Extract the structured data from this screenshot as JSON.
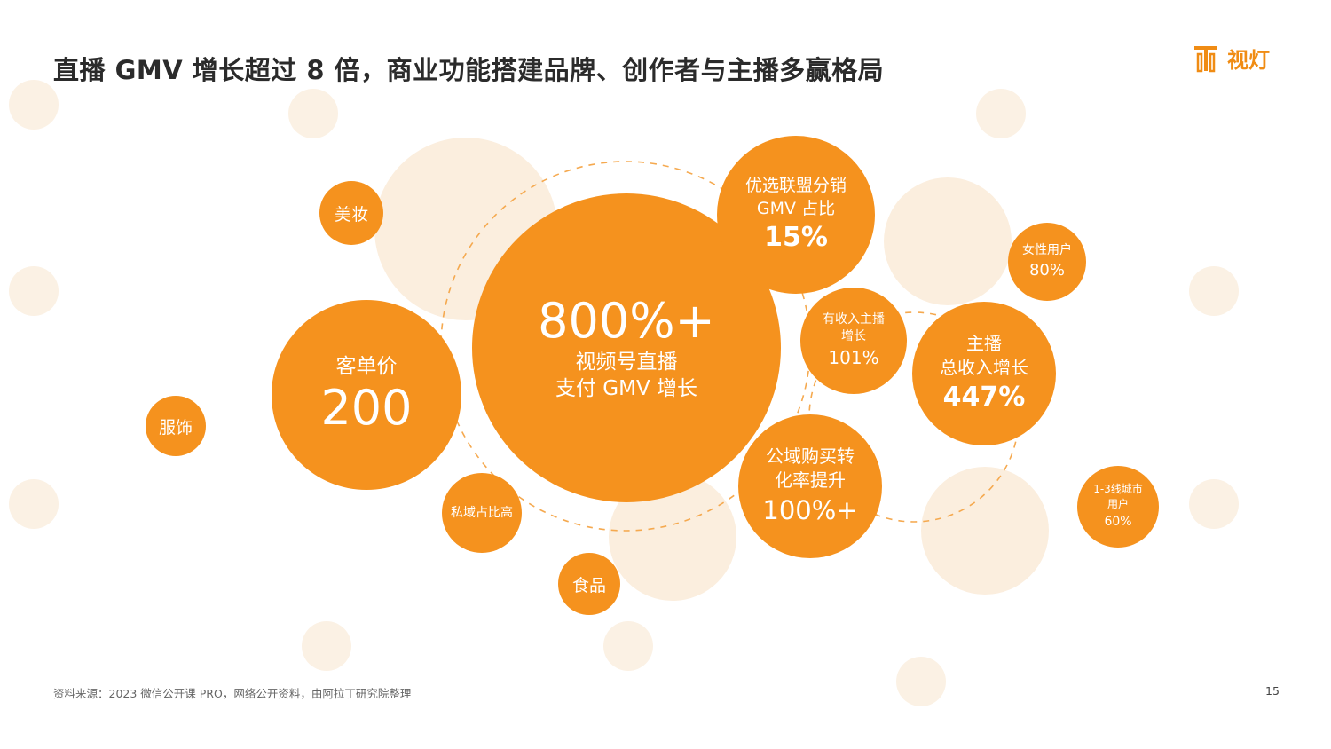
{
  "header": {
    "title": "直播 GMV 增长超过 8 倍，商业功能搭建品牌、创作者与主播多赢格局",
    "logo_text": "视灯"
  },
  "bubbles": {
    "center": {
      "value": "800%+",
      "line1": "视频号直播",
      "line2": "支付 GMV 增长"
    },
    "price": {
      "label": "客单价",
      "value": "200"
    },
    "affiliate": {
      "line1": "优选联盟分销",
      "line2": "GMV 占比",
      "value": "15%"
    },
    "income_streamers": {
      "line1": "有收入主播",
      "line2": "增长",
      "value": "101%"
    },
    "total_income": {
      "line1": "主播",
      "line2": "总收入增长",
      "value": "447%"
    },
    "conversion": {
      "line1": "公域购买转",
      "line2": "化率提升",
      "value": "100%+"
    },
    "female_users": {
      "line1": "女性用户",
      "value": "80%"
    },
    "city_users": {
      "line1": "1-3线城市",
      "line2": "用户",
      "value": "60%"
    },
    "private_domain": {
      "label": "私域占比高"
    },
    "beauty": {
      "label": "美妆"
    },
    "apparel": {
      "label": "服饰"
    },
    "food": {
      "label": "食品"
    }
  },
  "footer": {
    "source": "资料来源：2023 微信公开课 PRO，网络公开资料，由阿拉丁研究院整理",
    "page_number": "15"
  },
  "colors": {
    "accent": "#f5921e",
    "ghost": "#fbeede",
    "title": "#2b2b2b",
    "dashed": "#f5a94f"
  }
}
